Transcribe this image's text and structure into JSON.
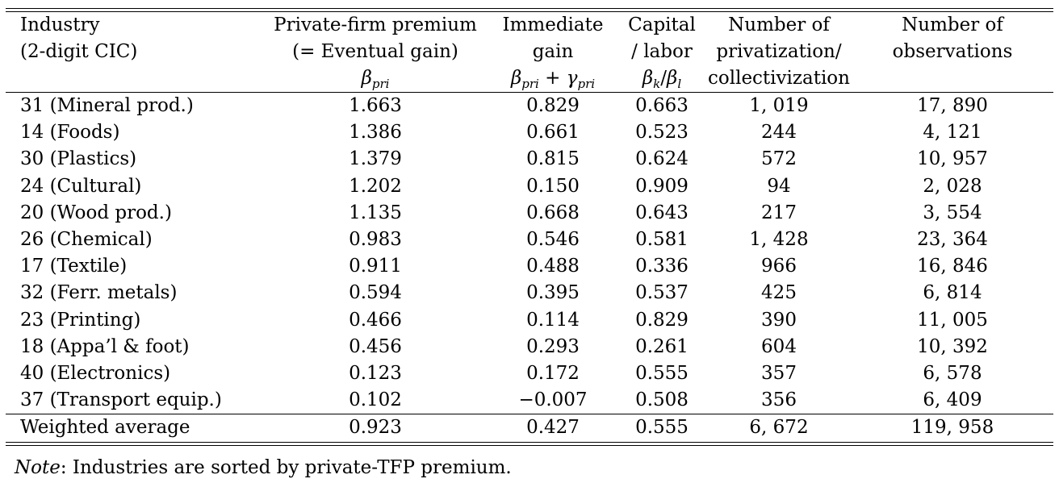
{
  "header": {
    "industry": [
      "Industry",
      "(2-digit CIC)"
    ],
    "premium": [
      "Private-firm premium",
      "(= Eventual gain)"
    ],
    "immediate": [
      "Immediate",
      "gain"
    ],
    "capital": [
      "Capital",
      "/ labor"
    ],
    "privatization": [
      "Number of",
      "privatization/",
      "collectivization"
    ],
    "observations": [
      "Number of",
      "observations"
    ]
  },
  "symbols": {
    "beta": "β",
    "pri": "pri",
    "gamma": "γ",
    "plus": " + ",
    "k": "k",
    "l": "l",
    "slash": "/"
  },
  "rows": [
    {
      "industry": "31 (Mineral prod.)",
      "premium": "1.663",
      "immediate": "0.829",
      "capital_labor": "0.663",
      "privatization": "1, 019",
      "observations": "17, 890"
    },
    {
      "industry": "14 (Foods)",
      "premium": "1.386",
      "immediate": "0.661",
      "capital_labor": "0.523",
      "privatization": "244",
      "observations": "4, 121"
    },
    {
      "industry": "30 (Plastics)",
      "premium": "1.379",
      "immediate": "0.815",
      "capital_labor": "0.624",
      "privatization": "572",
      "observations": "10, 957"
    },
    {
      "industry": "24 (Cultural)",
      "premium": "1.202",
      "immediate": "0.150",
      "capital_labor": "0.909",
      "privatization": "94",
      "observations": "2, 028"
    },
    {
      "industry": "20 (Wood prod.)",
      "premium": "1.135",
      "immediate": "0.668",
      "capital_labor": "0.643",
      "privatization": "217",
      "observations": "3, 554"
    },
    {
      "industry": "26 (Chemical)",
      "premium": "0.983",
      "immediate": "0.546",
      "capital_labor": "0.581",
      "privatization": "1, 428",
      "observations": "23, 364"
    },
    {
      "industry": "17 (Textile)",
      "premium": "0.911",
      "immediate": "0.488",
      "capital_labor": "0.336",
      "privatization": "966",
      "observations": "16, 846"
    },
    {
      "industry": "32 (Ferr. metals)",
      "premium": "0.594",
      "immediate": "0.395",
      "capital_labor": "0.537",
      "privatization": "425",
      "observations": "6, 814"
    },
    {
      "industry": "23 (Printing)",
      "premium": "0.466",
      "immediate": "0.114",
      "capital_labor": "0.829",
      "privatization": "390",
      "observations": "11, 005"
    },
    {
      "industry": "18 (Appa’l & foot)",
      "premium": "0.456",
      "immediate": "0.293",
      "capital_labor": "0.261",
      "privatization": "604",
      "observations": "10, 392"
    },
    {
      "industry": "40 (Electronics)",
      "premium": "0.123",
      "immediate": "0.172",
      "capital_labor": "0.555",
      "privatization": "357",
      "observations": "6, 578"
    },
    {
      "industry": "37 (Transport equip.)",
      "premium": "0.102",
      "immediate": "−0.007",
      "capital_labor": "0.508",
      "privatization": "356",
      "observations": "6, 409"
    }
  ],
  "total": {
    "industry": "Weighted average",
    "premium": "0.923",
    "immediate": "0.427",
    "capital_labor": "0.555",
    "privatization": "6, 672",
    "observations": "119, 958"
  },
  "note": {
    "label": "Note",
    "text": ": Industries are sorted by private-TFP premium."
  }
}
